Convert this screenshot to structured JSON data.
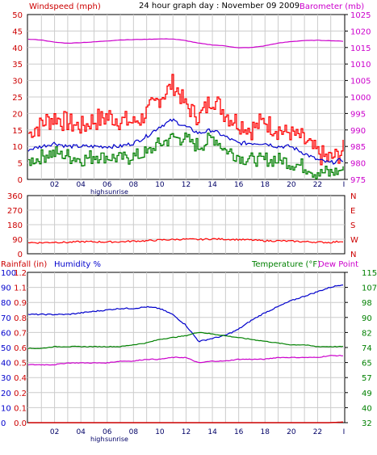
{
  "header": {
    "title": "24 hour graph day : November 09 2009",
    "left_label": "Windspeed (mph)",
    "right_label": "Barometer (mb)"
  },
  "colors": {
    "wind": "#ff0000",
    "gust": "#ff0000",
    "avg_wind": "#0000cc",
    "green": "#008000",
    "baro": "#cc00cc",
    "humidity": "#0000cc",
    "temp": "#008000",
    "dew": "#cc00cc",
    "rain": "#cc0000",
    "grid": "#cccccc",
    "frame": "#000000"
  },
  "x_ticks": [
    "02",
    "04",
    "06",
    "08",
    "10",
    "12",
    "14",
    "16",
    "18",
    "20",
    "22",
    "I"
  ],
  "bottom_labels": {
    "high": "high",
    "sunrise": "sunrise"
  },
  "chart_data": [
    {
      "type": "line",
      "title": "24 hour graph day : November 09 2009",
      "ylabel": "Windspeed (mph)",
      "y2label": "Barometer (mb)",
      "ylim": [
        0,
        50
      ],
      "y2lim": [
        975,
        1025
      ],
      "yticks": [
        "0",
        "5",
        "10",
        "15",
        "20",
        "25",
        "30",
        "35",
        "40",
        "45",
        "50"
      ],
      "y2ticks": [
        "975",
        "980",
        "985",
        "990",
        "995",
        "1000",
        "1005",
        "1010",
        "1015",
        "1020",
        "1025"
      ],
      "x_hours": [
        0,
        1,
        2,
        3,
        4,
        5,
        6,
        7,
        8,
        9,
        10,
        11,
        12,
        13,
        14,
        15,
        16,
        17,
        18,
        19,
        20,
        21,
        22,
        23,
        24
      ],
      "series": [
        {
          "key": "gust",
          "values": [
            14,
            17,
            19,
            17,
            16,
            18,
            19,
            18,
            17,
            20,
            25,
            29,
            22,
            19,
            25,
            20,
            17,
            15,
            18,
            15,
            14,
            12,
            8,
            6,
            9
          ]
        },
        {
          "key": "avg",
          "values": [
            9,
            10,
            11,
            10,
            10,
            10,
            10,
            10,
            11,
            13,
            16,
            18,
            16,
            14,
            15,
            13,
            11,
            11,
            11,
            10,
            10,
            8,
            6,
            5,
            6
          ]
        },
        {
          "key": "green",
          "values": [
            5,
            7,
            8,
            7,
            6,
            7,
            7,
            6,
            7,
            8,
            11,
            13,
            12,
            10,
            13,
            9,
            7,
            6,
            6,
            6,
            5,
            4,
            2,
            2,
            3
          ]
        },
        {
          "key": "baro",
          "values": [
            1017.5,
            1017.3,
            1016.6,
            1016.3,
            1016.5,
            1016.7,
            1017,
            1017.3,
            1017.4,
            1017.5,
            1017.6,
            1017.6,
            1017.1,
            1016.3,
            1015.8,
            1015.5,
            1014.9,
            1015,
            1015.5,
            1016.3,
            1016.8,
            1017.1,
            1017.2,
            1017.1,
            1016.9
          ]
        }
      ]
    },
    {
      "type": "line",
      "ylim": [
        0,
        360
      ],
      "yticks": [
        "0",
        "90",
        "180",
        "270",
        "360"
      ],
      "compass_labels": [
        "N",
        "W",
        "S",
        "E",
        "N"
      ],
      "series": [
        {
          "key": "direction",
          "values": [
            70,
            68,
            72,
            70,
            75,
            74,
            73,
            74,
            78,
            80,
            85,
            88,
            90,
            88,
            92,
            90,
            88,
            85,
            80,
            80,
            78,
            75,
            72,
            70,
            78
          ]
        }
      ]
    },
    {
      "type": "line",
      "labels": {
        "rainfall": "Rainfall (in)",
        "humidity": "Humidity %",
        "temperature": "Temperature (°F)",
        "dew_point": "Dew Point"
      },
      "ylim_humidity": [
        0,
        100
      ],
      "ylim_rain": [
        0,
        1.2
      ],
      "ylim_temp": [
        32,
        115
      ],
      "humidity_ticks": [
        "0",
        "10",
        "20",
        "30",
        "40",
        "50",
        "60",
        "70",
        "80",
        "90",
        "100"
      ],
      "rain_ticks": [
        "0.0",
        "0.1",
        "0.2",
        "0.4",
        "0.5",
        "0.6",
        "0.7",
        "0.8",
        "0.9",
        "1.1",
        "1.2"
      ],
      "temp_ticks": [
        "32",
        "40",
        "49",
        "57",
        "65",
        "74",
        "82",
        "90",
        "98",
        "107",
        "115"
      ],
      "series": [
        {
          "key": "humidity",
          "values": [
            72,
            72,
            72,
            72,
            73,
            74,
            75,
            76,
            76,
            77,
            76,
            72,
            65,
            54,
            56,
            58,
            62,
            68,
            73,
            77,
            81,
            84,
            87,
            90,
            92
          ]
        },
        {
          "key": "temperature",
          "values": [
            73,
            73,
            74,
            74,
            74,
            74,
            74,
            74,
            75,
            76,
            78,
            79,
            80,
            82,
            81,
            80,
            79,
            78,
            77,
            76,
            75,
            75,
            74,
            74,
            74
          ]
        },
        {
          "key": "dew_point",
          "values": [
            64,
            64,
            64,
            65,
            65,
            65,
            65,
            66,
            66,
            67,
            67,
            68,
            68,
            65,
            66,
            66,
            67,
            67,
            67,
            68,
            68,
            68,
            68,
            69,
            69
          ]
        },
        {
          "key": "rainfall",
          "values": [
            0,
            0,
            0,
            0,
            0,
            0,
            0,
            0,
            0,
            0,
            0,
            0,
            0,
            0,
            0,
            0,
            0,
            0,
            0,
            0,
            0,
            0,
            0,
            0,
            0.005
          ]
        }
      ]
    }
  ]
}
